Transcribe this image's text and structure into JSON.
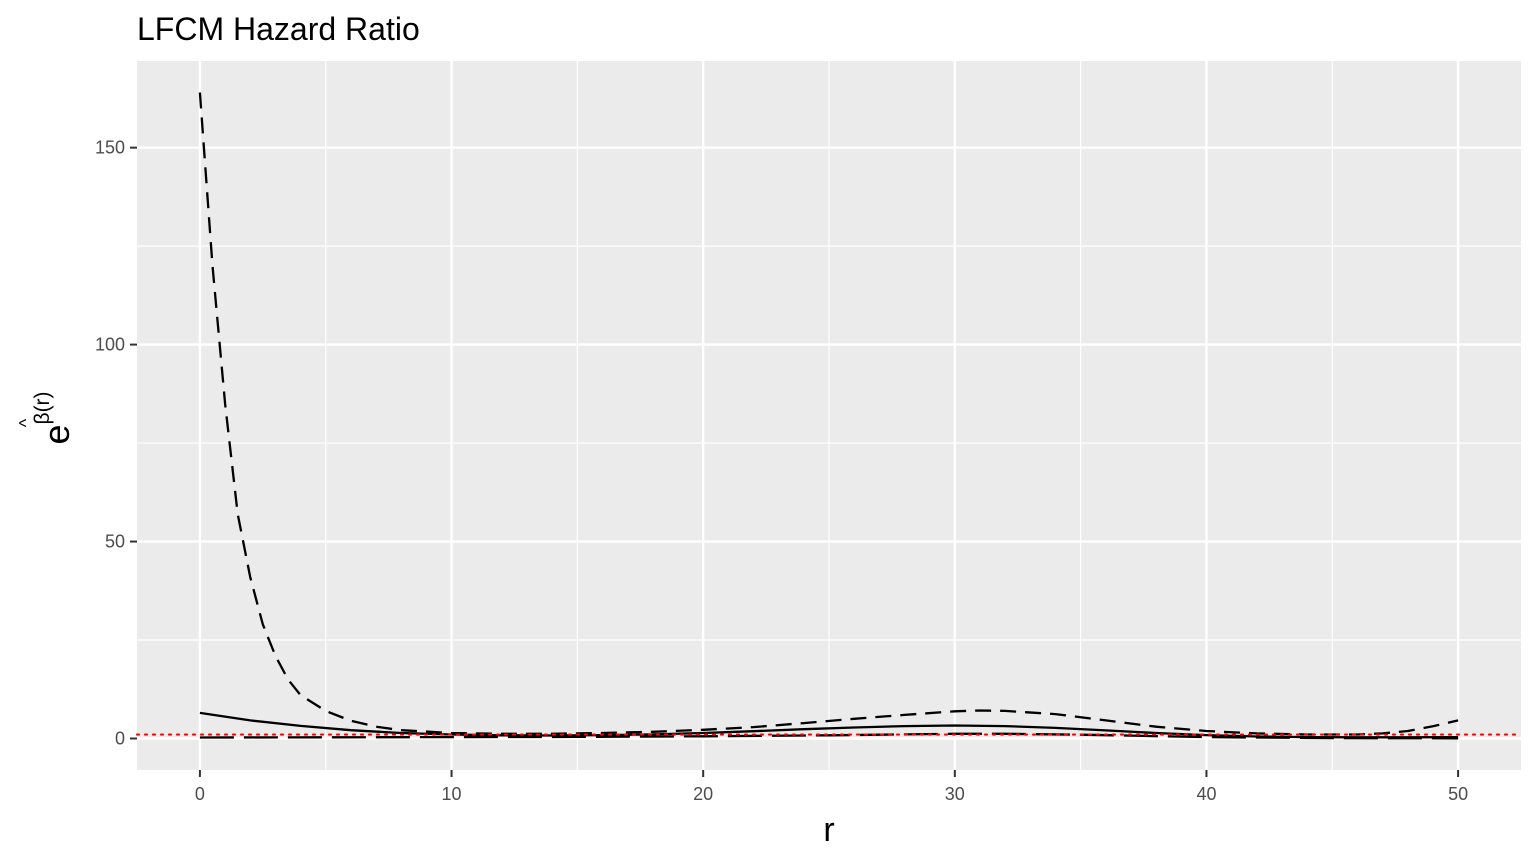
{
  "chart_data": {
    "type": "line",
    "title": "LFCM Hazard Ratio",
    "xlabel": "r",
    "ylabel": {
      "base": "e",
      "superscript": "β(r)",
      "hat": "^"
    },
    "xlim": [
      -2.5,
      52.5
    ],
    "ylim": [
      -8,
      172
    ],
    "x_ticks": [
      0,
      10,
      20,
      30,
      40,
      50
    ],
    "x_tick_labels": [
      "0",
      "10",
      "20",
      "30",
      "40",
      "50"
    ],
    "y_ticks": [
      0,
      50,
      100,
      150
    ],
    "y_tick_labels": [
      "0",
      "50",
      "100",
      "150"
    ],
    "x_minor_ticks": [
      5,
      15,
      25,
      35,
      45
    ],
    "y_minor_ticks": [
      25,
      75,
      125
    ],
    "grid": true,
    "reference_line": {
      "y": 1,
      "color": "#ff0000",
      "style": "dotted"
    },
    "colors": {
      "panel": "#ebebeb",
      "grid": "#ffffff",
      "series": "#000000"
    },
    "series": [
      {
        "style": "solid",
        "x": [
          0,
          2,
          4,
          6,
          8,
          10,
          12,
          14,
          16,
          18,
          20,
          22,
          24,
          26,
          28,
          30,
          32,
          34,
          36,
          38,
          40,
          42,
          44,
          46,
          48,
          50
        ],
        "y": [
          6.5,
          4.6,
          3.2,
          2.1,
          1.4,
          1.0,
          0.8,
          0.75,
          0.85,
          1.05,
          1.4,
          1.85,
          2.35,
          2.8,
          3.15,
          3.3,
          3.15,
          2.7,
          2.05,
          1.4,
          0.85,
          0.5,
          0.35,
          0.3,
          0.3,
          0.35
        ]
      },
      {
        "style": "dashed",
        "x": [
          0,
          0.5,
          1,
          1.5,
          2,
          2.5,
          3,
          3.5,
          4,
          5,
          6,
          7,
          8,
          10,
          12,
          14,
          16,
          18,
          20,
          22,
          24,
          26,
          28,
          30,
          31,
          32,
          34,
          36,
          38,
          40,
          42,
          44,
          46,
          47,
          48,
          49,
          50
        ],
        "y": [
          164,
          120,
          85,
          57,
          41,
          29,
          21,
          15,
          11,
          7,
          4.5,
          3.0,
          2.1,
          1.4,
          1.2,
          1.2,
          1.4,
          1.7,
          2.2,
          2.9,
          3.9,
          5.0,
          6.0,
          6.9,
          7.1,
          7.0,
          6.2,
          4.6,
          3.0,
          1.9,
          1.3,
          1.0,
          1.0,
          1.3,
          1.9,
          3.1,
          4.6
        ]
      },
      {
        "style": "longdash",
        "x": [
          0,
          5,
          10,
          15,
          20,
          25,
          30,
          32,
          35,
          40,
          45,
          50
        ],
        "y": [
          0.25,
          0.3,
          0.35,
          0.4,
          0.55,
          0.8,
          1.2,
          1.2,
          0.95,
          0.35,
          0.1,
          0.05
        ]
      }
    ]
  }
}
